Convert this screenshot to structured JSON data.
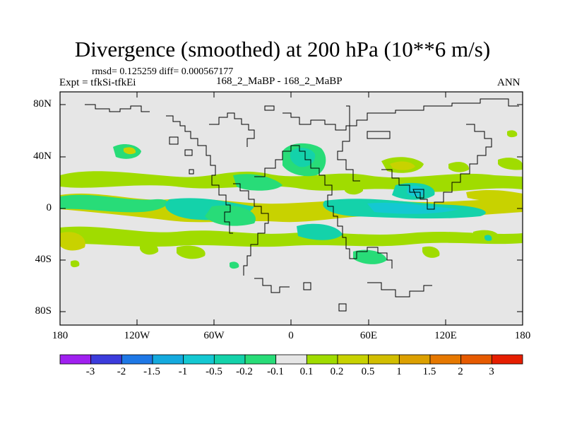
{
  "title": "Divergence (smoothed) at 200 hPa (10**6 m/s)",
  "stats": "rmsd= 0.125259 diff= 0.000567177",
  "expt": "Expt = tfkSi-tfkEi",
  "case": "168_2_MaBP - 168_2_MaBP",
  "season": "ANN",
  "lat_labels": [
    "80N",
    "40N",
    "0",
    "40S",
    "80S"
  ],
  "lon_labels": [
    "180",
    "120W",
    "60W",
    "0",
    "60E",
    "120E",
    "180"
  ],
  "colorbar": {
    "colors": [
      "#a020f0",
      "#3c3cdc",
      "#1e78e6",
      "#14aade",
      "#14c8d2",
      "#14d2aa",
      "#28dc78",
      "#e6e6e6",
      "#a0dc00",
      "#c8d200",
      "#d2be00",
      "#dca000",
      "#e67800",
      "#e65a00",
      "#e61e00"
    ],
    "labels": [
      "-3",
      "-2",
      "-1.5",
      "-1",
      "-0.5",
      "-0.2",
      "-0.1",
      "0.1",
      "0.2",
      "0.5",
      "1",
      "1.5",
      "2",
      "3"
    ]
  }
}
